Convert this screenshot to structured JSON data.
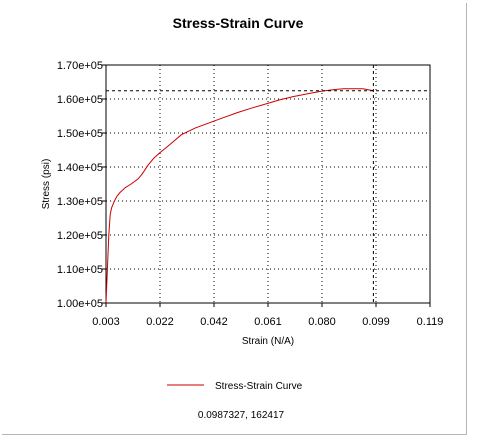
{
  "chart_data": {
    "type": "line",
    "title": "Stress-Strain Curve",
    "xlabel": "Strain (N/A)",
    "ylabel": "Stress (psi)",
    "xlim": [
      0.003,
      0.119
    ],
    "ylim": [
      100000,
      170000
    ],
    "xticks": [
      "0.003",
      "0.022",
      "0.042",
      "0.061",
      "0.080",
      "0.099",
      "0.119"
    ],
    "yticks": [
      "1.00e+05",
      "1.10e+05",
      "1.20e+05",
      "1.30e+05",
      "1.40e+05",
      "1.50e+05",
      "1.60e+05",
      "1.70e+05"
    ],
    "grid": "dotted",
    "legend_position": "bottom",
    "series": [
      {
        "name": "Stress-Strain Curve",
        "color": "#cc0000",
        "x": [
          0.003,
          0.0035,
          0.004,
          0.0045,
          0.005,
          0.006,
          0.007,
          0.008,
          0.01,
          0.012,
          0.0145,
          0.016,
          0.018,
          0.02,
          0.022,
          0.025,
          0.03,
          0.035,
          0.04,
          0.045,
          0.05,
          0.055,
          0.06,
          0.065,
          0.07,
          0.075,
          0.08,
          0.085,
          0.088,
          0.09,
          0.095,
          0.0987327
        ],
        "y": [
          100000,
          110000,
          120000,
          126000,
          128000,
          130000,
          131500,
          132500,
          134000,
          135000,
          136500,
          138000,
          140500,
          142500,
          144000,
          146000,
          149500,
          151500,
          153000,
          154500,
          156000,
          157300,
          158500,
          159700,
          160700,
          161500,
          162300,
          162800,
          163000,
          163000,
          163000,
          162417
        ]
      }
    ]
  },
  "crosshair": {
    "x": 0.0987327,
    "y": 162417,
    "color": "#000000"
  },
  "readout": "0.0987327, 162417"
}
